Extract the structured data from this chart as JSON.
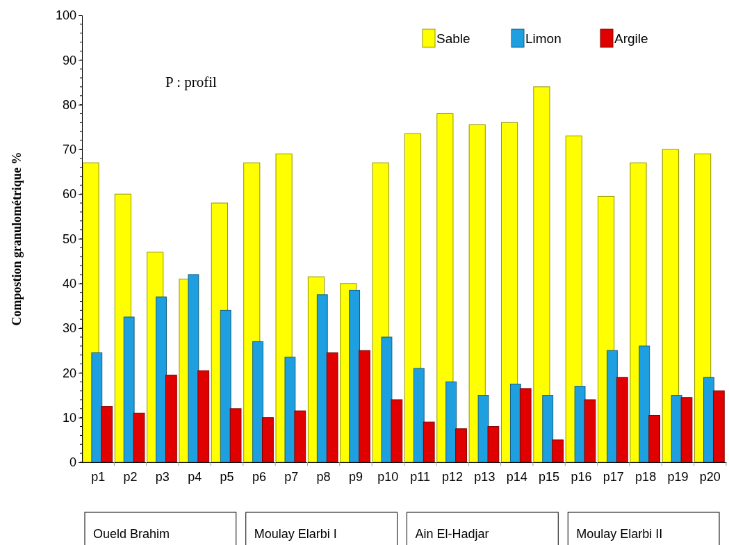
{
  "chart_data": {
    "type": "bar",
    "ylabel": "Compostion granulométrique %",
    "categories": [
      "p1",
      "p2",
      "p3",
      "p4",
      "p5",
      "p6",
      "p7",
      "p8",
      "p9",
      "p10",
      "p11",
      "p12",
      "p13",
      "p14",
      "p15",
      "p16",
      "p17",
      "p18",
      "p19",
      "p20"
    ],
    "series": [
      {
        "name": "Sable",
        "color": "#ffff00",
        "values": [
          67,
          60,
          47,
          41,
          58,
          67,
          69,
          41.5,
          40,
          67,
          73.5,
          78,
          75.5,
          76,
          84,
          73,
          59.5,
          67,
          70,
          69
        ]
      },
      {
        "name": "Limon",
        "color": "#1e9fe0",
        "values": [
          24.5,
          32.5,
          37,
          42,
          34,
          27,
          23.5,
          37.5,
          38.5,
          28,
          21,
          18,
          15,
          17.5,
          15,
          17,
          25,
          26,
          15,
          19
        ]
      },
      {
        "name": "Argile",
        "color": "#e00000",
        "values": [
          12.5,
          11,
          19.5,
          20.5,
          12,
          10,
          11.5,
          24.5,
          25,
          14,
          9,
          7.5,
          8,
          16.5,
          5,
          14,
          19,
          10.5,
          14.5,
          16
        ]
      }
    ],
    "ylim": [
      0,
      100
    ],
    "yticks": [
      0,
      10,
      20,
      30,
      40,
      50,
      60,
      70,
      80,
      90,
      100
    ],
    "grid": false,
    "legend": "top right",
    "annotations": [
      "P : profil",
      "Oueld Brahim",
      "Moulay Elarbi I",
      "Ain El-Hadjar",
      "Moulay Elarbi II"
    ]
  }
}
